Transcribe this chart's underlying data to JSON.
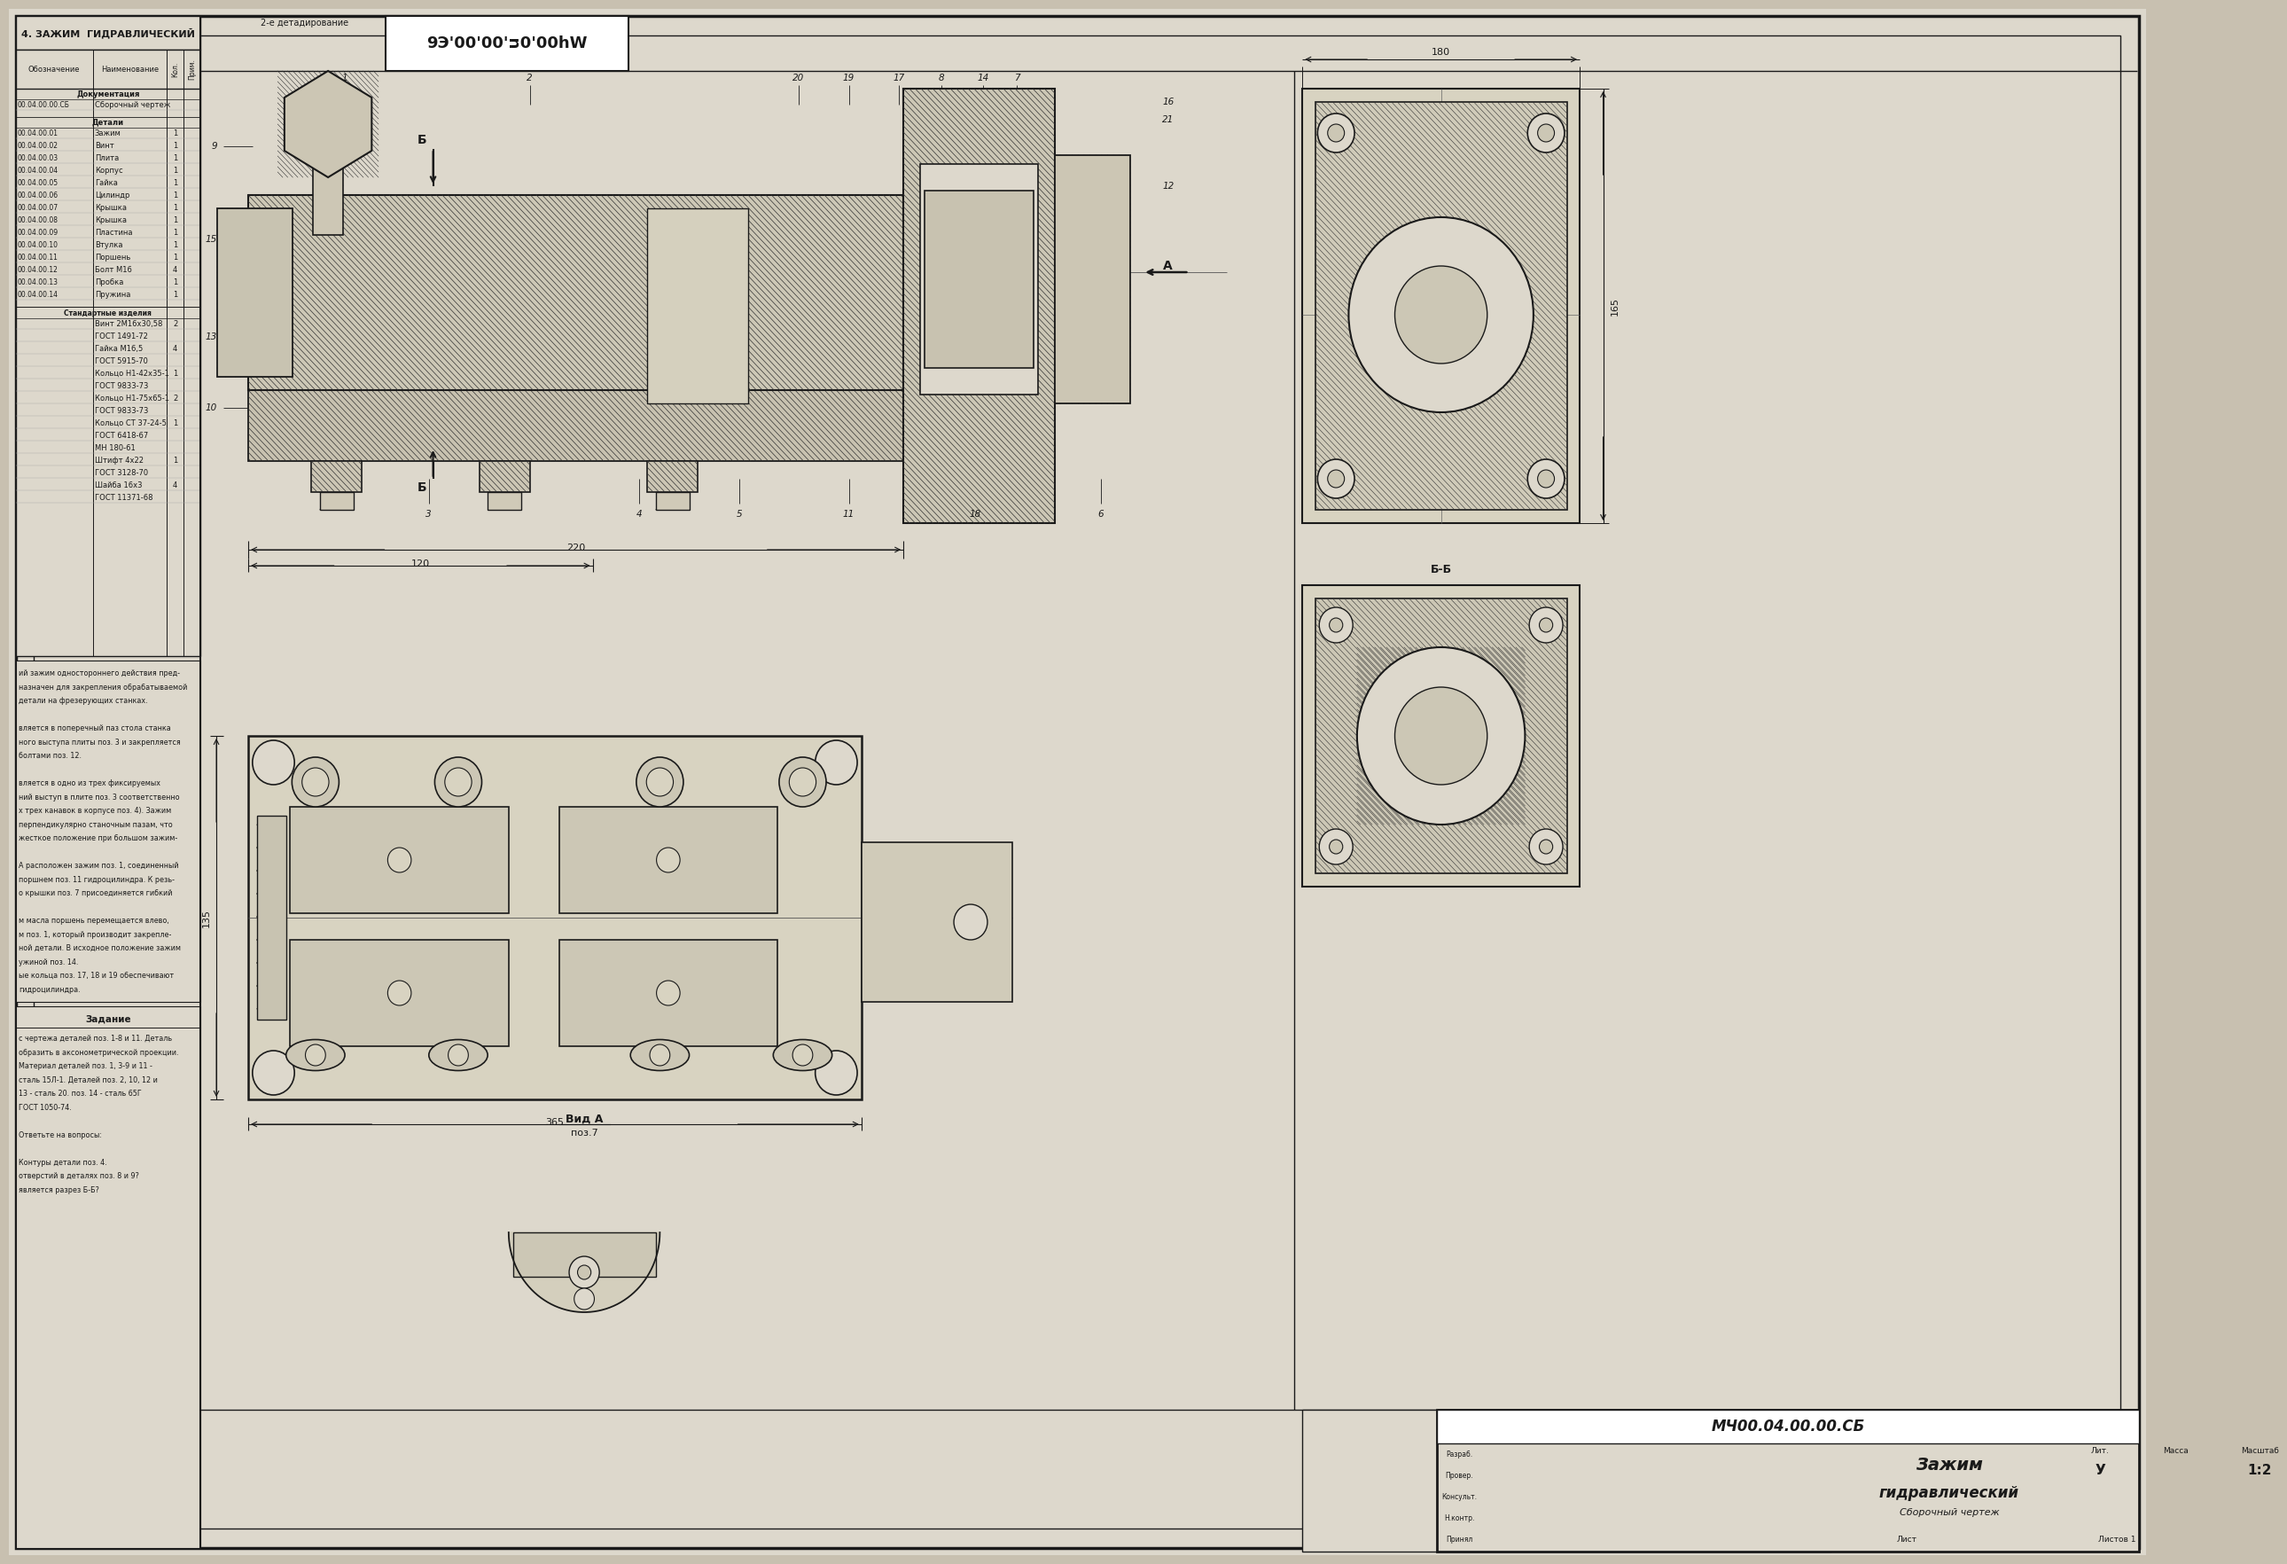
{
  "bg_color": "#c8c0b0",
  "paper_color": "#ddd8cc",
  "line_color": "#1a1a1a",
  "hatch_color": "#333333",
  "stamp_code": "МЧ00.04.00.00.СБ",
  "title_name1": "Зажим",
  "title_name2": "гидравлический",
  "title_sub": "Сборочный чертеж",
  "scale_val": "1:2",
  "lit_val": "У",
  "sheet_val": "Лист",
  "sheets_val": "Листов 1",
  "top_left_title": "4. ЗАЖИМ  ГИДРАВЛИЧЕСКИЙ",
  "top_stamp": "9Э'00'00't0'00hW",
  "det_label": "2-е детадирование",
  "view_a_label": "Вид А",
  "view_a_sub": "поз.7",
  "bb_label": "Б-Б",
  "A_arrow": "А",
  "dim_220": "220",
  "dim_120": "120",
  "dim_365": "365",
  "dim_135": "135",
  "dim_180": "180",
  "dim_165": "165"
}
